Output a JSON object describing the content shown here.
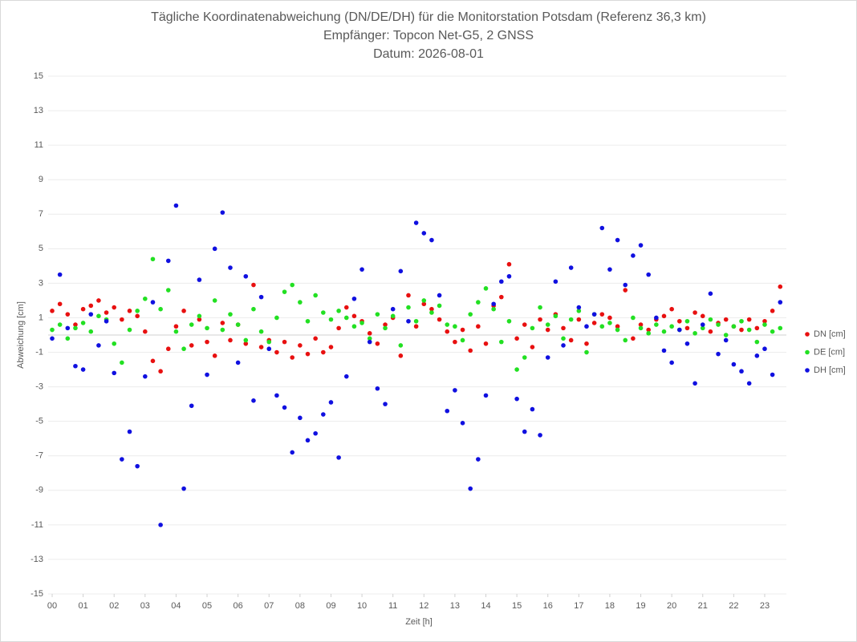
{
  "chart_data": {
    "type": "scatter",
    "title": [
      "Tägliche Koordinatenabweichung (DN/DE/DH) für die Monitorstation Potsdam (Referenz 36,3 km)",
      "Empfänger: Topcon Net-G5, 2 GNSS",
      "Datum: 2026-08-01"
    ],
    "x_label": "Zeit [h]",
    "y_label": "Abweichung [cm]",
    "xlim": [
      0,
      23.7
    ],
    "ylim": [
      -15,
      15
    ],
    "xticks": [
      {
        "value": 0,
        "label": "00"
      },
      {
        "value": 1,
        "label": "01"
      },
      {
        "value": 2,
        "label": "02"
      },
      {
        "value": 3,
        "label": "03"
      },
      {
        "value": 4,
        "label": "04"
      },
      {
        "value": 5,
        "label": "05"
      },
      {
        "value": 6,
        "label": "06"
      },
      {
        "value": 7,
        "label": "07"
      },
      {
        "value": 8,
        "label": "08"
      },
      {
        "value": 9,
        "label": "09"
      },
      10,
      11,
      12,
      13,
      14,
      15,
      16,
      17,
      18,
      19,
      20,
      21,
      22,
      23
    ],
    "yticks": [
      -15,
      -13,
      -11,
      -9,
      -7,
      -5,
      -3,
      -1,
      1,
      3,
      5,
      7,
      9,
      11,
      13,
      15
    ],
    "grid": true,
    "legend": "right",
    "x": [
      0,
      0.25,
      0.5,
      0.75,
      1,
      1.25,
      1.5,
      1.75,
      2,
      2.25,
      2.5,
      2.75,
      3,
      3.25,
      3.5,
      3.75,
      4,
      4.25,
      4.5,
      4.75,
      5,
      5.25,
      5.5,
      5.75,
      6,
      6.25,
      6.5,
      6.75,
      7,
      7.25,
      7.5,
      7.75,
      8,
      8.25,
      8.5,
      8.75,
      9,
      9.25,
      9.5,
      9.75,
      10,
      10.25,
      10.5,
      10.75,
      11,
      11.25,
      11.5,
      11.75,
      12,
      12.25,
      12.5,
      12.75,
      13,
      13.25,
      13.5,
      13.75,
      14,
      14.25,
      14.5,
      14.75,
      15,
      15.25,
      15.5,
      15.75,
      16,
      16.25,
      16.5,
      16.75,
      17,
      17.25,
      17.5,
      17.75,
      18,
      18.25,
      18.5,
      18.75,
      19,
      19.25,
      19.5,
      19.75,
      20,
      20.25,
      20.5,
      20.75,
      21,
      21.25,
      21.5,
      21.75,
      22,
      22.25,
      22.5,
      22.75,
      23,
      23.25,
      23.5
    ],
    "series": [
      {
        "name": "DN [cm]",
        "color": "#e81010",
        "values": [
          1.4,
          1.8,
          1.2,
          0.6,
          1.5,
          1.7,
          2.0,
          1.3,
          1.6,
          0.9,
          1.4,
          1.1,
          0.2,
          -1.5,
          -2.1,
          -0.8,
          0.5,
          1.4,
          -0.6,
          0.9,
          -0.4,
          -1.2,
          0.7,
          -0.3,
          0.6,
          -0.5,
          2.9,
          -0.7,
          -0.3,
          -1.0,
          -0.4,
          -1.3,
          -0.6,
          -1.1,
          -0.2,
          -1.0,
          -0.7,
          0.4,
          1.6,
          1.1,
          0.8,
          0.1,
          -0.5,
          0.6,
          1.0,
          -1.2,
          2.3,
          0.5,
          1.8,
          1.5,
          0.9,
          0.2,
          -0.4,
          0.3,
          -0.9,
          0.5,
          -0.5,
          1.7,
          2.2,
          4.1,
          -0.2,
          0.6,
          -0.7,
          0.9,
          0.3,
          1.2,
          0.4,
          -0.3,
          0.9,
          -0.5,
          0.7,
          1.2,
          1.0,
          0.5,
          2.6,
          -0.2,
          0.6,
          0.3,
          0.9,
          1.1,
          1.5,
          0.8,
          0.4,
          1.3,
          1.1,
          0.2,
          0.7,
          0.9,
          0.5,
          0.3,
          0.9,
          0.4,
          0.8,
          1.4,
          2.8
        ]
      },
      {
        "name": "DE [cm]",
        "color": "#22e022",
        "values": [
          0.3,
          0.6,
          -0.2,
          0.4,
          0.7,
          0.2,
          1.1,
          0.9,
          -0.5,
          -1.6,
          0.3,
          1.4,
          2.1,
          4.4,
          1.5,
          2.6,
          0.2,
          -0.8,
          0.6,
          1.1,
          0.4,
          2.0,
          0.3,
          1.2,
          0.6,
          -0.3,
          1.5,
          0.2,
          -0.4,
          1.0,
          2.5,
          2.9,
          1.9,
          0.8,
          2.3,
          1.3,
          0.9,
          1.4,
          1.0,
          0.5,
          0.7,
          -0.2,
          1.2,
          0.4,
          1.1,
          -0.6,
          1.6,
          0.8,
          2.0,
          1.3,
          1.7,
          0.6,
          0.5,
          -0.3,
          1.2,
          1.9,
          2.7,
          1.5,
          -0.4,
          0.8,
          -2.0,
          -1.3,
          0.4,
          1.6,
          0.6,
          1.1,
          -0.2,
          0.9,
          1.4,
          -1.0,
          1.2,
          0.5,
          0.7,
          0.3,
          -0.3,
          1.0,
          0.4,
          0.1,
          0.6,
          0.2,
          0.5,
          0.3,
          0.8,
          0.1,
          0.4,
          0.9,
          0.6,
          0.0,
          0.5,
          0.8,
          0.3,
          -0.4,
          0.6,
          0.2,
          0.4
        ]
      },
      {
        "name": "DH [cm]",
        "color": "#1010e0",
        "values": [
          -0.2,
          3.5,
          0.4,
          -1.8,
          -2.0,
          1.2,
          -0.6,
          0.8,
          -2.2,
          -7.2,
          -5.6,
          -7.6,
          -2.4,
          1.9,
          -11.0,
          4.3,
          7.5,
          -8.9,
          -4.1,
          3.2,
          -2.3,
          5.0,
          7.1,
          3.9,
          -1.6,
          3.4,
          -3.8,
          2.2,
          -0.8,
          -3.5,
          -4.2,
          -6.8,
          -4.8,
          -6.1,
          -5.7,
          -4.6,
          -3.9,
          -7.1,
          -2.4,
          2.1,
          3.8,
          -0.4,
          -3.1,
          -4.0,
          1.5,
          3.7,
          0.8,
          6.5,
          5.9,
          5.5,
          2.3,
          -4.4,
          -3.2,
          -5.1,
          -8.9,
          -7.2,
          -3.5,
          1.8,
          3.1,
          3.4,
          -3.7,
          -5.6,
          -4.3,
          -5.8,
          -1.3,
          3.1,
          -0.6,
          3.9,
          1.6,
          0.5,
          1.2,
          6.2,
          3.8,
          5.5,
          2.9,
          4.6,
          5.2,
          3.5,
          1.0,
          -0.9,
          -1.6,
          0.3,
          -0.5,
          -2.8,
          0.6,
          2.4,
          -1.1,
          -0.3,
          -1.7,
          -2.1,
          -2.8,
          -1.2,
          -0.8,
          -2.3,
          1.9
        ]
      }
    ]
  }
}
